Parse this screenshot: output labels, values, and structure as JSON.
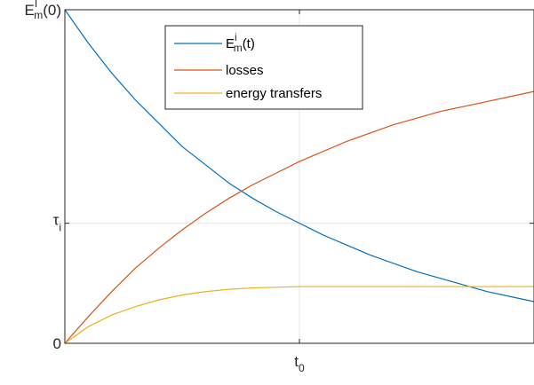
{
  "chart_data": {
    "type": "line",
    "title": "",
    "xlabel": "",
    "ylabel": "",
    "xlim": [
      0,
      1
    ],
    "ylim": [
      0,
      1
    ],
    "grid": true,
    "legend_position": "top-center",
    "x_ticks": [
      {
        "value": 0.5,
        "label": "t",
        "sub": "0"
      }
    ],
    "y_ticks": [
      {
        "value": 0,
        "label": "0"
      },
      {
        "value": 0.36,
        "label": "τ",
        "sub": "i"
      },
      {
        "value": 1,
        "label": "E",
        "sup": "I",
        "sub": "m",
        "suffix": "(0)"
      }
    ],
    "series": [
      {
        "name": "E_m^i(t)",
        "legend": {
          "base": "E",
          "sup": "i",
          "sub": "m",
          "suffix": "(t)"
        },
        "color": "#0072BD",
        "points": [
          [
            0,
            1.0
          ],
          [
            0.05,
            0.9
          ],
          [
            0.1,
            0.81
          ],
          [
            0.15,
            0.73
          ],
          [
            0.2,
            0.66
          ],
          [
            0.25,
            0.59
          ],
          [
            0.3,
            0.535
          ],
          [
            0.35,
            0.48
          ],
          [
            0.4,
            0.435
          ],
          [
            0.45,
            0.395
          ],
          [
            0.5,
            0.36
          ],
          [
            0.55,
            0.325
          ],
          [
            0.6,
            0.295
          ],
          [
            0.65,
            0.265
          ],
          [
            0.7,
            0.24
          ],
          [
            0.75,
            0.215
          ],
          [
            0.8,
            0.195
          ],
          [
            0.85,
            0.175
          ],
          [
            0.9,
            0.155
          ],
          [
            0.95,
            0.14
          ],
          [
            1,
            0.125
          ]
        ]
      },
      {
        "name": "losses",
        "legend": {
          "base": "losses"
        },
        "color": "#D95319",
        "points": [
          [
            0,
            0.0
          ],
          [
            0.05,
            0.08
          ],
          [
            0.1,
            0.155
          ],
          [
            0.15,
            0.225
          ],
          [
            0.2,
            0.285
          ],
          [
            0.25,
            0.34
          ],
          [
            0.3,
            0.39
          ],
          [
            0.35,
            0.435
          ],
          [
            0.4,
            0.475
          ],
          [
            0.45,
            0.51
          ],
          [
            0.5,
            0.545
          ],
          [
            0.55,
            0.575
          ],
          [
            0.6,
            0.605
          ],
          [
            0.65,
            0.63
          ],
          [
            0.7,
            0.655
          ],
          [
            0.75,
            0.675
          ],
          [
            0.8,
            0.695
          ],
          [
            0.85,
            0.71
          ],
          [
            0.9,
            0.725
          ],
          [
            0.95,
            0.74
          ],
          [
            1,
            0.755
          ]
        ]
      },
      {
        "name": "energy transfers",
        "legend": {
          "base": "energy transfers"
        },
        "color": "#EDB120",
        "points": [
          [
            0,
            0.0
          ],
          [
            0.05,
            0.05
          ],
          [
            0.1,
            0.085
          ],
          [
            0.15,
            0.11
          ],
          [
            0.2,
            0.13
          ],
          [
            0.25,
            0.145
          ],
          [
            0.3,
            0.155
          ],
          [
            0.35,
            0.162
          ],
          [
            0.4,
            0.166
          ],
          [
            0.45,
            0.168
          ],
          [
            0.5,
            0.17
          ],
          [
            0.6,
            0.17
          ],
          [
            0.7,
            0.17
          ],
          [
            0.8,
            0.17
          ],
          [
            0.9,
            0.17
          ],
          [
            1,
            0.17
          ]
        ]
      }
    ]
  }
}
